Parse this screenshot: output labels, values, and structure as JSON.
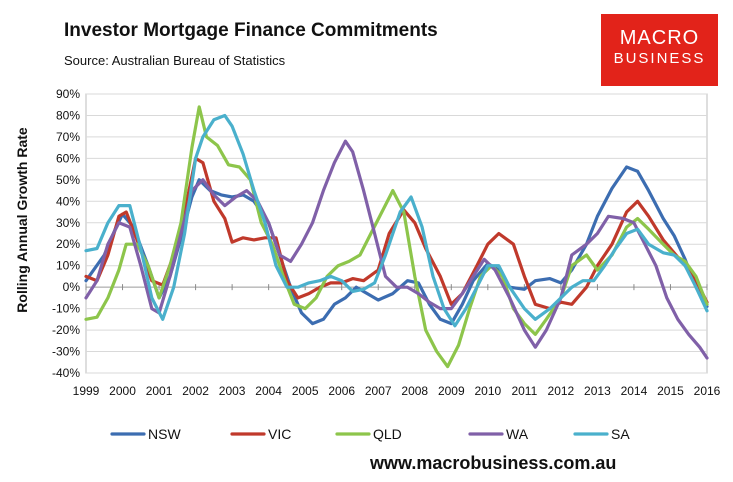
{
  "header": {
    "title": "Investor Mortgage Finance Commitments",
    "subtitle": "Source: Australian Bureau of Statistics"
  },
  "logo": {
    "line1": "MACRO",
    "line2": "BUSINESS",
    "color": "#e2231a"
  },
  "footer": {
    "url": "www.macrobusiness.com.au"
  },
  "chart_data": {
    "type": "line",
    "title": "Investor Mortgage Finance Commitments",
    "ylabel": "Rolling Annual Growth Rate",
    "xlabel": "",
    "xlim": [
      1999,
      2016
    ],
    "ylim": [
      -40,
      90
    ],
    "x_ticks": [
      "1999",
      "2000",
      "2001",
      "2002",
      "2003",
      "2004",
      "2005",
      "2006",
      "2007",
      "2008",
      "2009",
      "2010",
      "2011",
      "2012",
      "2013",
      "2014",
      "2015",
      "2016"
    ],
    "y_ticks": [
      "90%",
      "80%",
      "70%",
      "60%",
      "50%",
      "40%",
      "30%",
      "20%",
      "10%",
      "0%",
      "-10%",
      "-20%",
      "-30%",
      "-40%"
    ],
    "y_tick_values": [
      90,
      80,
      70,
      60,
      50,
      40,
      30,
      20,
      10,
      0,
      -10,
      -20,
      -30,
      -40
    ],
    "grid": true,
    "legend": "bottom",
    "series": [
      {
        "name": "NSW",
        "color": "#3c6db1",
        "points": [
          [
            1999.0,
            3
          ],
          [
            1999.5,
            15
          ],
          [
            1999.8,
            27
          ],
          [
            2000.0,
            34
          ],
          [
            2000.3,
            28
          ],
          [
            2000.7,
            10
          ],
          [
            2001.0,
            -5
          ],
          [
            2001.3,
            5
          ],
          [
            2001.6,
            23
          ],
          [
            2001.9,
            42
          ],
          [
            2002.1,
            50
          ],
          [
            2002.4,
            45
          ],
          [
            2002.7,
            43
          ],
          [
            2003.0,
            42
          ],
          [
            2003.3,
            43
          ],
          [
            2003.6,
            40
          ],
          [
            2004.0,
            30
          ],
          [
            2004.3,
            15
          ],
          [
            2004.6,
            0
          ],
          [
            2004.9,
            -12
          ],
          [
            2005.2,
            -17
          ],
          [
            2005.5,
            -15
          ],
          [
            2005.8,
            -8
          ],
          [
            2006.1,
            -5
          ],
          [
            2006.4,
            0
          ],
          [
            2006.7,
            -3
          ],
          [
            2007.0,
            -6
          ],
          [
            2007.4,
            -3
          ],
          [
            2007.8,
            3
          ],
          [
            2008.1,
            2
          ],
          [
            2008.4,
            -8
          ],
          [
            2008.7,
            -15
          ],
          [
            2009.0,
            -17
          ],
          [
            2009.3,
            -8
          ],
          [
            2009.6,
            3
          ],
          [
            2010.0,
            11
          ],
          [
            2010.3,
            8
          ],
          [
            2010.6,
            0
          ],
          [
            2011.0,
            -1
          ],
          [
            2011.3,
            3
          ],
          [
            2011.7,
            4
          ],
          [
            2012.0,
            2
          ],
          [
            2012.3,
            8
          ],
          [
            2012.7,
            20
          ],
          [
            2013.0,
            33
          ],
          [
            2013.4,
            46
          ],
          [
            2013.8,
            56
          ],
          [
            2014.1,
            54
          ],
          [
            2014.4,
            45
          ],
          [
            2014.8,
            32
          ],
          [
            2015.1,
            24
          ],
          [
            2015.4,
            13
          ],
          [
            2015.7,
            0
          ],
          [
            2016.0,
            -9
          ]
        ]
      },
      {
        "name": "VIC",
        "color": "#c0392b",
        "points": [
          [
            1999.0,
            5
          ],
          [
            1999.3,
            3
          ],
          [
            1999.6,
            15
          ],
          [
            1999.9,
            33
          ],
          [
            2000.1,
            35
          ],
          [
            2000.4,
            22
          ],
          [
            2000.8,
            3
          ],
          [
            2001.1,
            1
          ],
          [
            2001.4,
            15
          ],
          [
            2001.7,
            35
          ],
          [
            2002.0,
            60
          ],
          [
            2002.2,
            58
          ],
          [
            2002.5,
            40
          ],
          [
            2002.8,
            32
          ],
          [
            2003.0,
            21
          ],
          [
            2003.3,
            23
          ],
          [
            2003.6,
            22
          ],
          [
            2003.9,
            23
          ],
          [
            2004.2,
            23
          ],
          [
            2004.5,
            3
          ],
          [
            2004.8,
            -5
          ],
          [
            2005.1,
            -3
          ],
          [
            2005.4,
            0
          ],
          [
            2005.7,
            2
          ],
          [
            2006.0,
            2
          ],
          [
            2006.3,
            4
          ],
          [
            2006.6,
            3
          ],
          [
            2007.0,
            8
          ],
          [
            2007.3,
            25
          ],
          [
            2007.7,
            36
          ],
          [
            2008.0,
            30
          ],
          [
            2008.3,
            18
          ],
          [
            2008.7,
            5
          ],
          [
            2009.0,
            -8
          ],
          [
            2009.3,
            -3
          ],
          [
            2009.7,
            10
          ],
          [
            2010.0,
            20
          ],
          [
            2010.3,
            25
          ],
          [
            2010.7,
            20
          ],
          [
            2011.0,
            5
          ],
          [
            2011.3,
            -8
          ],
          [
            2011.7,
            -10
          ],
          [
            2012.0,
            -7
          ],
          [
            2012.3,
            -8
          ],
          [
            2012.7,
            0
          ],
          [
            2013.0,
            10
          ],
          [
            2013.4,
            20
          ],
          [
            2013.8,
            35
          ],
          [
            2014.1,
            40
          ],
          [
            2014.4,
            33
          ],
          [
            2014.8,
            22
          ],
          [
            2015.1,
            16
          ],
          [
            2015.4,
            10
          ],
          [
            2015.7,
            3
          ],
          [
            2016.0,
            -7
          ]
        ]
      },
      {
        "name": "QLD",
        "color": "#8dc54b",
        "points": [
          [
            1999.0,
            -15
          ],
          [
            1999.3,
            -14
          ],
          [
            1999.6,
            -5
          ],
          [
            1999.9,
            8
          ],
          [
            2000.1,
            20
          ],
          [
            2000.4,
            20
          ],
          [
            2000.7,
            10
          ],
          [
            2001.0,
            -5
          ],
          [
            2001.3,
            10
          ],
          [
            2001.6,
            30
          ],
          [
            2001.9,
            65
          ],
          [
            2002.1,
            84
          ],
          [
            2002.3,
            70
          ],
          [
            2002.6,
            66
          ],
          [
            2002.9,
            57
          ],
          [
            2003.2,
            56
          ],
          [
            2003.5,
            50
          ],
          [
            2003.8,
            30
          ],
          [
            2004.1,
            20
          ],
          [
            2004.4,
            5
          ],
          [
            2004.7,
            -8
          ],
          [
            2005.0,
            -10
          ],
          [
            2005.3,
            -5
          ],
          [
            2005.6,
            5
          ],
          [
            2005.9,
            10
          ],
          [
            2006.2,
            12
          ],
          [
            2006.5,
            15
          ],
          [
            2006.8,
            25
          ],
          [
            2007.1,
            35
          ],
          [
            2007.4,
            45
          ],
          [
            2007.7,
            35
          ],
          [
            2008.0,
            5
          ],
          [
            2008.3,
            -20
          ],
          [
            2008.6,
            -30
          ],
          [
            2008.9,
            -37
          ],
          [
            2009.2,
            -27
          ],
          [
            2009.5,
            -10
          ],
          [
            2009.8,
            5
          ],
          [
            2010.1,
            10
          ],
          [
            2010.4,
            5
          ],
          [
            2010.7,
            -10
          ],
          [
            2011.0,
            -17
          ],
          [
            2011.3,
            -22
          ],
          [
            2011.6,
            -15
          ],
          [
            2012.0,
            -5
          ],
          [
            2012.3,
            10
          ],
          [
            2012.7,
            15
          ],
          [
            2013.0,
            8
          ],
          [
            2013.4,
            15
          ],
          [
            2013.8,
            28
          ],
          [
            2014.1,
            32
          ],
          [
            2014.4,
            27
          ],
          [
            2014.8,
            20
          ],
          [
            2015.1,
            15
          ],
          [
            2015.4,
            12
          ],
          [
            2015.7,
            5
          ],
          [
            2016.0,
            -8
          ]
        ]
      },
      {
        "name": "WA",
        "color": "#8060a8",
        "points": [
          [
            1999.0,
            -5
          ],
          [
            1999.3,
            3
          ],
          [
            1999.6,
            20
          ],
          [
            1999.9,
            30
          ],
          [
            2000.2,
            28
          ],
          [
            2000.5,
            10
          ],
          [
            2000.8,
            -10
          ],
          [
            2001.0,
            -12
          ],
          [
            2001.3,
            5
          ],
          [
            2001.6,
            25
          ],
          [
            2001.9,
            45
          ],
          [
            2002.2,
            50
          ],
          [
            2002.5,
            43
          ],
          [
            2002.8,
            38
          ],
          [
            2003.1,
            42
          ],
          [
            2003.4,
            45
          ],
          [
            2003.7,
            40
          ],
          [
            2004.0,
            30
          ],
          [
            2004.3,
            15
          ],
          [
            2004.6,
            12
          ],
          [
            2004.9,
            20
          ],
          [
            2005.2,
            30
          ],
          [
            2005.5,
            45
          ],
          [
            2005.8,
            58
          ],
          [
            2006.1,
            68
          ],
          [
            2006.3,
            63
          ],
          [
            2006.6,
            45
          ],
          [
            2006.9,
            25
          ],
          [
            2007.2,
            5
          ],
          [
            2007.5,
            0
          ],
          [
            2007.8,
            0
          ],
          [
            2008.1,
            -3
          ],
          [
            2008.4,
            -7
          ],
          [
            2008.7,
            -10
          ],
          [
            2009.0,
            -10
          ],
          [
            2009.3,
            -3
          ],
          [
            2009.6,
            5
          ],
          [
            2009.9,
            13
          ],
          [
            2010.2,
            8
          ],
          [
            2010.6,
            -5
          ],
          [
            2011.0,
            -20
          ],
          [
            2011.3,
            -28
          ],
          [
            2011.6,
            -20
          ],
          [
            2012.0,
            -5
          ],
          [
            2012.3,
            15
          ],
          [
            2012.7,
            20
          ],
          [
            2013.0,
            25
          ],
          [
            2013.3,
            33
          ],
          [
            2013.7,
            32
          ],
          [
            2014.0,
            30
          ],
          [
            2014.3,
            20
          ],
          [
            2014.6,
            10
          ],
          [
            2014.9,
            -5
          ],
          [
            2015.2,
            -15
          ],
          [
            2015.5,
            -22
          ],
          [
            2015.8,
            -28
          ],
          [
            2016.0,
            -33
          ]
        ]
      },
      {
        "name": "SA",
        "color": "#4ab0cc",
        "points": [
          [
            1999.0,
            17
          ],
          [
            1999.3,
            18
          ],
          [
            1999.6,
            30
          ],
          [
            1999.9,
            38
          ],
          [
            2000.2,
            38
          ],
          [
            2000.5,
            18
          ],
          [
            2000.8,
            -5
          ],
          [
            2001.1,
            -15
          ],
          [
            2001.4,
            0
          ],
          [
            2001.7,
            25
          ],
          [
            2002.0,
            60
          ],
          [
            2002.2,
            70
          ],
          [
            2002.5,
            78
          ],
          [
            2002.8,
            80
          ],
          [
            2003.0,
            75
          ],
          [
            2003.3,
            62
          ],
          [
            2003.6,
            45
          ],
          [
            2003.9,
            30
          ],
          [
            2004.2,
            10
          ],
          [
            2004.5,
            0
          ],
          [
            2004.8,
            0
          ],
          [
            2005.1,
            2
          ],
          [
            2005.4,
            3
          ],
          [
            2005.7,
            5
          ],
          [
            2006.0,
            3
          ],
          [
            2006.3,
            -2
          ],
          [
            2006.6,
            -1
          ],
          [
            2006.9,
            2
          ],
          [
            2007.2,
            15
          ],
          [
            2007.6,
            35
          ],
          [
            2007.9,
            42
          ],
          [
            2008.2,
            28
          ],
          [
            2008.5,
            5
          ],
          [
            2008.8,
            -10
          ],
          [
            2009.1,
            -18
          ],
          [
            2009.4,
            -10
          ],
          [
            2009.7,
            0
          ],
          [
            2010.0,
            10
          ],
          [
            2010.3,
            10
          ],
          [
            2010.6,
            0
          ],
          [
            2011.0,
            -10
          ],
          [
            2011.3,
            -15
          ],
          [
            2011.7,
            -10
          ],
          [
            2012.0,
            -5
          ],
          [
            2012.3,
            0
          ],
          [
            2012.6,
            3
          ],
          [
            2012.9,
            3
          ],
          [
            2013.2,
            10
          ],
          [
            2013.5,
            18
          ],
          [
            2013.8,
            25
          ],
          [
            2014.1,
            27
          ],
          [
            2014.4,
            20
          ],
          [
            2014.8,
            16
          ],
          [
            2015.1,
            15
          ],
          [
            2015.4,
            10
          ],
          [
            2015.7,
            0
          ],
          [
            2016.0,
            -11
          ]
        ]
      }
    ]
  }
}
